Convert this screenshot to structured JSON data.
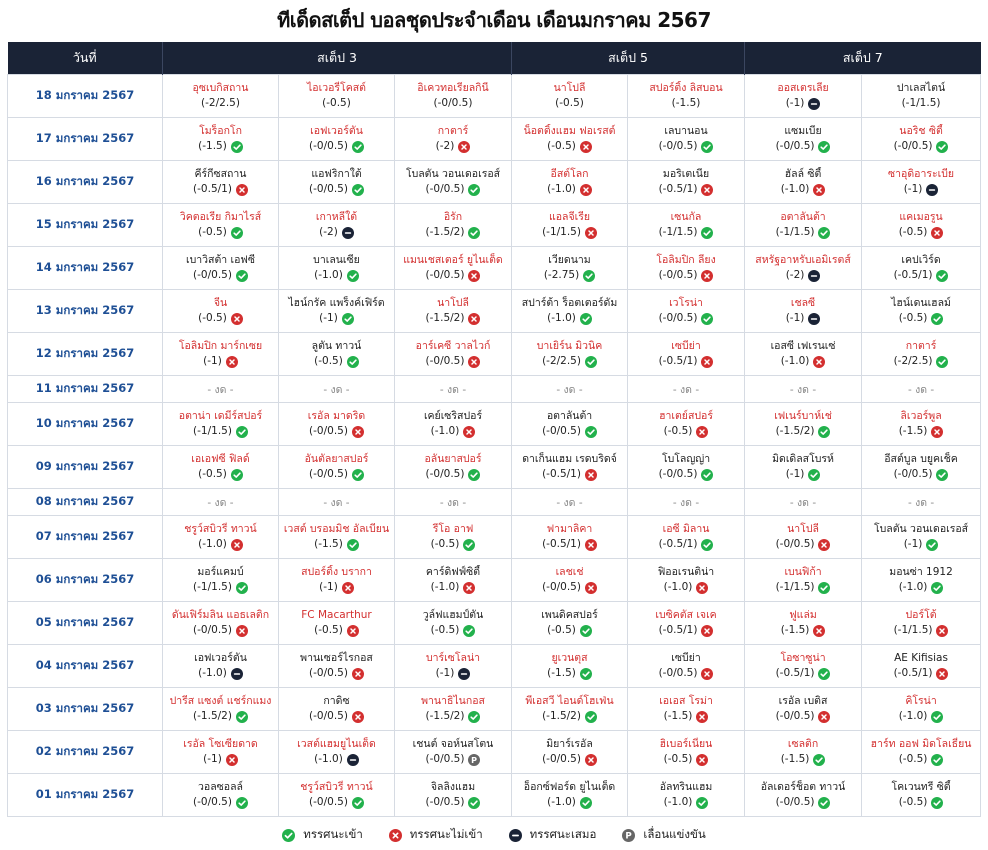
{
  "title": "ทีเด็ดสเต็ป บอลชุดประจำเดือน เดือนมกราคม 2567",
  "headers": {
    "date": "วันที่",
    "step3": "สเต็ป 3",
    "step5": "สเต็ป 5",
    "step7": "สเต็ป 7"
  },
  "colors": {
    "win": "#22b14c",
    "lose": "#d32f2f",
    "draw": "#1a2336",
    "postponed": "#666666",
    "date": "#1e4f95",
    "header_bg": "#1a2336"
  },
  "legend": {
    "win": "ทรรศนะเข้า",
    "lose": "ทรรศนะไม่เข้า",
    "draw": "ทรรศนะเสมอ",
    "postponed": "เลื่อนแข่งขัน"
  },
  "none_text": "- งด -",
  "rows": [
    {
      "date": "18 มกราคม 2567",
      "picks": [
        {
          "team": "อุซเบกิสถาน",
          "hc": "(-2/2.5)",
          "red": true,
          "st": ""
        },
        {
          "team": "ไอเวอรี่โคสต์",
          "hc": "(-0.5)",
          "red": true,
          "st": ""
        },
        {
          "team": "อิเควทอเรียลกินี",
          "hc": "(-0/0.5)",
          "red": true,
          "st": ""
        },
        {
          "team": "นาโปลี",
          "hc": "(-0.5)",
          "red": true,
          "st": ""
        },
        {
          "team": "สปอร์ติ้ง ลิสบอน",
          "hc": "(-1.5)",
          "red": true,
          "st": ""
        },
        {
          "team": "ออสเตรเลีย",
          "hc": "(-1)",
          "red": true,
          "st": "draw"
        },
        {
          "team": "ปาเลสไตน์",
          "hc": "(-1/1.5)",
          "red": false,
          "st": ""
        }
      ]
    },
    {
      "date": "17 มกราคม 2567",
      "picks": [
        {
          "team": "โมร็อกโก",
          "hc": "(-1.5)",
          "red": true,
          "st": "win"
        },
        {
          "team": "เอฟเวอร์ตัน",
          "hc": "(-0/0.5)",
          "red": true,
          "st": "win"
        },
        {
          "team": "กาตาร์",
          "hc": "(-2)",
          "red": true,
          "st": "lose"
        },
        {
          "team": "น็อตติ้งแฮม ฟอเรสต์",
          "hc": "(-0.5)",
          "red": true,
          "st": "lose"
        },
        {
          "team": "เลบานอน",
          "hc": "(-0/0.5)",
          "red": false,
          "st": "win"
        },
        {
          "team": "แซมเบีย",
          "hc": "(-0/0.5)",
          "red": false,
          "st": "win"
        },
        {
          "team": "นอริช ซิตี้",
          "hc": "(-0/0.5)",
          "red": true,
          "st": "win"
        }
      ]
    },
    {
      "date": "16 มกราคม 2567",
      "picks": [
        {
          "team": "คีร์กีซสถาน",
          "hc": "(-0.5/1)",
          "red": false,
          "st": "lose"
        },
        {
          "team": "แอฟริกาใต้",
          "hc": "(-0/0.5)",
          "red": false,
          "st": "win"
        },
        {
          "team": "โบลตัน วอนเดอเรอส์",
          "hc": "(-0/0.5)",
          "red": false,
          "st": "win"
        },
        {
          "team": "อีสต์โลก",
          "hc": "(-1.0)",
          "red": true,
          "st": "lose"
        },
        {
          "team": "มอริเตเนีย",
          "hc": "(-0.5/1)",
          "red": false,
          "st": "lose"
        },
        {
          "team": "ฮัลล์ ซิตี้",
          "hc": "(-1.0)",
          "red": false,
          "st": "lose"
        },
        {
          "team": "ซาอุดิอาระเบีย",
          "hc": "(-1)",
          "red": true,
          "st": "draw"
        }
      ]
    },
    {
      "date": "15 มกราคม 2567",
      "picks": [
        {
          "team": "วิคตอเรีย กิมาไรส์",
          "hc": "(-0.5)",
          "red": true,
          "st": "win"
        },
        {
          "team": "เกาหลีใต้",
          "hc": "(-2)",
          "red": true,
          "st": "draw"
        },
        {
          "team": "อิรัก",
          "hc": "(-1.5/2)",
          "red": true,
          "st": "win"
        },
        {
          "team": "แอลจีเรีย",
          "hc": "(-1/1.5)",
          "red": true,
          "st": "lose"
        },
        {
          "team": "เซนกัล",
          "hc": "(-1/1.5)",
          "red": true,
          "st": "win"
        },
        {
          "team": "อตาลันต้า",
          "hc": "(-1/1.5)",
          "red": true,
          "st": "win"
        },
        {
          "team": "แคเมอรูน",
          "hc": "(-0.5)",
          "red": true,
          "st": "lose"
        }
      ]
    },
    {
      "date": "14 มกราคม 2567",
      "picks": [
        {
          "team": "เบาวิสต้า เอฟซี",
          "hc": "(-0/0.5)",
          "red": false,
          "st": "win"
        },
        {
          "team": "บาเลนเซีย",
          "hc": "(-1.0)",
          "red": false,
          "st": "win"
        },
        {
          "team": "แมนเชสเตอร์ ยูไนเต็ด",
          "hc": "(-0/0.5)",
          "red": true,
          "st": "lose"
        },
        {
          "team": "เวียดนาม",
          "hc": "(-2.75)",
          "red": false,
          "st": "win"
        },
        {
          "team": "โอลิมปิก ลียง",
          "hc": "(-0/0.5)",
          "red": true,
          "st": "lose"
        },
        {
          "team": "สหรัฐอาหรับเอมิเรตส์",
          "hc": "(-2)",
          "red": true,
          "st": "draw"
        },
        {
          "team": "เคปเวิร์ด",
          "hc": "(-0.5/1)",
          "red": false,
          "st": "win"
        }
      ]
    },
    {
      "date": "13 มกราคม 2567",
      "picks": [
        {
          "team": "จีน",
          "hc": "(-0.5)",
          "red": true,
          "st": "lose"
        },
        {
          "team": "ไฮน์กรัค แพร็งค์เฟิร์ต",
          "hc": "(-1)",
          "red": false,
          "st": "win"
        },
        {
          "team": "นาโปลี",
          "hc": "(-1.5/2)",
          "red": true,
          "st": "lose"
        },
        {
          "team": "สปาร์ต้า ร็อตเตอร์ดัม",
          "hc": "(-1.0)",
          "red": false,
          "st": "win"
        },
        {
          "team": "เวโรน่า",
          "hc": "(-0/0.5)",
          "red": true,
          "st": "win"
        },
        {
          "team": "เชลซี",
          "hc": "(-1)",
          "red": true,
          "st": "draw"
        },
        {
          "team": "ไฮน์เดนเฮลม์",
          "hc": "(-0.5)",
          "red": false,
          "st": "win"
        }
      ]
    },
    {
      "date": "12 มกราคม 2567",
      "picks": [
        {
          "team": "โอลิมปิก มาร์กเซย",
          "hc": "(-1)",
          "red": true,
          "st": "lose"
        },
        {
          "team": "ลูตัน ทาวน์",
          "hc": "(-0.5)",
          "red": false,
          "st": "win"
        },
        {
          "team": "อาร์เคซี วาลไวก์",
          "hc": "(-0/0.5)",
          "red": true,
          "st": "lose"
        },
        {
          "team": "บาเยิร์น มิวนิค",
          "hc": "(-2/2.5)",
          "red": true,
          "st": "win"
        },
        {
          "team": "เซบีย่า",
          "hc": "(-0.5/1)",
          "red": true,
          "st": "lose"
        },
        {
          "team": "เอสซี เฟเรนเซ่",
          "hc": "(-1.0)",
          "red": false,
          "st": "lose"
        },
        {
          "team": "กาตาร์",
          "hc": "(-2/2.5)",
          "red": true,
          "st": "win"
        }
      ]
    },
    {
      "date": "11 มกราคม 2567",
      "none": true
    },
    {
      "date": "10 มกราคม 2567",
      "picks": [
        {
          "team": "อตาน่า เดมีร์สปอร์",
          "hc": "(-1/1.5)",
          "red": true,
          "st": "win"
        },
        {
          "team": "เรอัล มาดริด",
          "hc": "(-0/0.5)",
          "red": true,
          "st": "lose"
        },
        {
          "team": "เคย์เซริสปอร์",
          "hc": "(-1.0)",
          "red": false,
          "st": "lose"
        },
        {
          "team": "อตาลันต้า",
          "hc": "(-0/0.5)",
          "red": false,
          "st": "win"
        },
        {
          "team": "ฮาเตย์สปอร์",
          "hc": "(-0.5)",
          "red": true,
          "st": "lose"
        },
        {
          "team": "เฟเนร์บาห์เช่",
          "hc": "(-1.5/2)",
          "red": true,
          "st": "win"
        },
        {
          "team": "ลิเวอร์พูล",
          "hc": "(-1.5)",
          "red": true,
          "st": "lose"
        }
      ]
    },
    {
      "date": "09 มกราคม 2567",
      "picks": [
        {
          "team": "เอเอฟซี ฟิลด์",
          "hc": "(-0.5)",
          "red": true,
          "st": "win"
        },
        {
          "team": "อันตัลยาสปอร์",
          "hc": "(-0/0.5)",
          "red": true,
          "st": "win"
        },
        {
          "team": "อลันยาสปอร์",
          "hc": "(-0/0.5)",
          "red": true,
          "st": "win"
        },
        {
          "team": "ดาเก็นแฮม เรดบริดจ์",
          "hc": "(-0.5/1)",
          "red": false,
          "st": "lose"
        },
        {
          "team": "โบโลญญ่า",
          "hc": "(-0/0.5)",
          "red": false,
          "st": "win"
        },
        {
          "team": "มิดเดิลสโบรห์",
          "hc": "(-1)",
          "red": false,
          "st": "win"
        },
        {
          "team": "อีสต์บูล บยูคเช็ค",
          "hc": "(-0/0.5)",
          "red": false,
          "st": "win"
        }
      ]
    },
    {
      "date": "08 มกราคม 2567",
      "none": true
    },
    {
      "date": "07 มกราคม 2567",
      "picks": [
        {
          "team": "ชรูว์สบิวรี่ ทาวน์",
          "hc": "(-1.0)",
          "red": true,
          "st": "lose"
        },
        {
          "team": "เวสต์ บรอมมิช อัลเบียน",
          "hc": "(-1.5)",
          "red": true,
          "st": "win"
        },
        {
          "team": "รีโอ อาฟ",
          "hc": "(-0.5)",
          "red": true,
          "st": "win"
        },
        {
          "team": "ฟามาลิคา",
          "hc": "(-0.5/1)",
          "red": true,
          "st": "lose"
        },
        {
          "team": "เอซี มิลาน",
          "hc": "(-0.5/1)",
          "red": true,
          "st": "win"
        },
        {
          "team": "นาโปลี",
          "hc": "(-0/0.5)",
          "red": true,
          "st": "lose"
        },
        {
          "team": "โบลตัน วอนเดอเรอส์",
          "hc": "(-1)",
          "red": false,
          "st": "win"
        }
      ]
    },
    {
      "date": "06 มกราคม 2567",
      "picks": [
        {
          "team": "มอร์แคมบ์",
          "hc": "(-1/1.5)",
          "red": false,
          "st": "win"
        },
        {
          "team": "สปอร์ติ้ง บรากา",
          "hc": "(-1)",
          "red": true,
          "st": "lose"
        },
        {
          "team": "คาร์ดิฟฟ์ซิตี้",
          "hc": "(-1.0)",
          "red": false,
          "st": "lose"
        },
        {
          "team": "เลชเช่",
          "hc": "(-0/0.5)",
          "red": true,
          "st": "lose"
        },
        {
          "team": "ฟิออเรนติน่า",
          "hc": "(-1.0)",
          "red": false,
          "st": "lose"
        },
        {
          "team": "เบนฟิก้า",
          "hc": "(-1/1.5)",
          "red": true,
          "st": "win"
        },
        {
          "team": "มอนซ่า 1912",
          "hc": "(-1.0)",
          "red": false,
          "st": "win"
        }
      ]
    },
    {
      "date": "05 มกราคม 2567",
      "picks": [
        {
          "team": "ดันเฟิร์มลิน แอธเลติก",
          "hc": "(-0/0.5)",
          "red": true,
          "st": "lose"
        },
        {
          "team": "FC Macarthur",
          "hc": "(-0.5)",
          "red": true,
          "st": "lose"
        },
        {
          "team": "วูล์ฟแฮมป์ตัน",
          "hc": "(-0.5)",
          "red": false,
          "st": "win"
        },
        {
          "team": "เพนดิคสปอร์",
          "hc": "(-0.5)",
          "red": false,
          "st": "win"
        },
        {
          "team": "เบซิคตัส เจเค",
          "hc": "(-0.5/1)",
          "red": true,
          "st": "lose"
        },
        {
          "team": "ฟูแล่ม",
          "hc": "(-1.5)",
          "red": true,
          "st": "lose"
        },
        {
          "team": "ปอร์โต้",
          "hc": "(-1/1.5)",
          "red": true,
          "st": "lose"
        }
      ]
    },
    {
      "date": "04 มกราคม 2567",
      "picks": [
        {
          "team": "เอฟเวอร์ตัน",
          "hc": "(-1.0)",
          "red": false,
          "st": "draw"
        },
        {
          "team": "พานเซอร์ไรกอส",
          "hc": "(-0/0.5)",
          "red": false,
          "st": "lose"
        },
        {
          "team": "บาร์เซโลน่า",
          "hc": "(-1)",
          "red": true,
          "st": "draw"
        },
        {
          "team": "ยูเวนตุส",
          "hc": "(-1.5)",
          "red": true,
          "st": "win"
        },
        {
          "team": "เซบีย่า",
          "hc": "(-0/0.5)",
          "red": false,
          "st": "lose"
        },
        {
          "team": "โอซาซูน่า",
          "hc": "(-0.5/1)",
          "red": true,
          "st": "win"
        },
        {
          "team": "AE Kifisias",
          "hc": "(-0.5/1)",
          "red": false,
          "st": "lose"
        }
      ]
    },
    {
      "date": "03 มกราคม 2567",
      "picks": [
        {
          "team": "ปารีส แซงต์ แชร์กแมง",
          "hc": "(-1.5/2)",
          "red": true,
          "st": "win"
        },
        {
          "team": "กาดิซ",
          "hc": "(-0/0.5)",
          "red": false,
          "st": "lose"
        },
        {
          "team": "พานาธิไนกอส",
          "hc": "(-1.5/2)",
          "red": true,
          "st": "win"
        },
        {
          "team": "พีเอสวี ไอนด์โฮเฟ่น",
          "hc": "(-1.5/2)",
          "red": true,
          "st": "win"
        },
        {
          "team": "เอเอส โรม่า",
          "hc": "(-1.5)",
          "red": true,
          "st": "lose"
        },
        {
          "team": "เรอัล เบติส",
          "hc": "(-0/0.5)",
          "red": false,
          "st": "lose"
        },
        {
          "team": "คิโรน่า",
          "hc": "(-1.0)",
          "red": true,
          "st": "win"
        }
      ]
    },
    {
      "date": "02 มกราคม 2567",
      "picks": [
        {
          "team": "เรอัล โซเซียดาด",
          "hc": "(-1)",
          "red": true,
          "st": "lose"
        },
        {
          "team": "เวสต์แฮมยูไนเต็ด",
          "hc": "(-1.0)",
          "red": true,
          "st": "draw"
        },
        {
          "team": "เชนต์ จอห์นสโตน",
          "hc": "(-0/0.5)",
          "red": false,
          "st": "post"
        },
        {
          "team": "มิยาร์เรอัล",
          "hc": "(-0/0.5)",
          "red": false,
          "st": "lose"
        },
        {
          "team": "ฮิเบอร์เนี่ยน",
          "hc": "(-0.5)",
          "red": true,
          "st": "lose"
        },
        {
          "team": "เซลติก",
          "hc": "(-1.5)",
          "red": true,
          "st": "win"
        },
        {
          "team": "ฮาร์ท ออฟ มิดโลเธี่ยน",
          "hc": "(-0.5)",
          "red": true,
          "st": "win"
        }
      ]
    },
    {
      "date": "01 มกราคม 2567",
      "picks": [
        {
          "team": "วอลซอลล์",
          "hc": "(-0/0.5)",
          "red": false,
          "st": "win"
        },
        {
          "team": "ชรูว์สบิวรี่ ทาวน์",
          "hc": "(-0/0.5)",
          "red": true,
          "st": "win"
        },
        {
          "team": "จิลลิงแฮม",
          "hc": "(-0/0.5)",
          "red": false,
          "st": "win"
        },
        {
          "team": "อ็อกซ์ฟอร์ด ยูไนเต็ด",
          "hc": "(-1.0)",
          "red": false,
          "st": "win"
        },
        {
          "team": "อัลทรินแฮม",
          "hc": "(-1.0)",
          "red": false,
          "st": "win"
        },
        {
          "team": "อัลเดอร์ช็อต ทาวน์",
          "hc": "(-0/0.5)",
          "red": false,
          "st": "win"
        },
        {
          "team": "โคเวนทรี ซิตี้",
          "hc": "(-0.5)",
          "red": false,
          "st": "win"
        }
      ]
    }
  ]
}
